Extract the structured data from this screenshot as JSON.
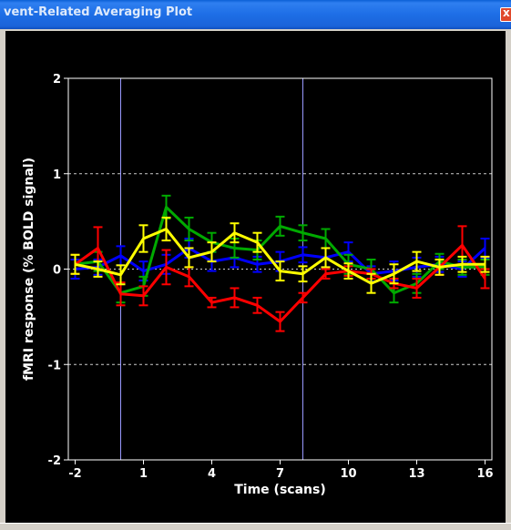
{
  "window": {
    "title": "vent-Related Averaging Plot",
    "close_glyph": "x"
  },
  "chart_data": {
    "type": "line",
    "xlabel": "Time (scans)",
    "ylabel": "fMRI response (% BOLD signal)",
    "xlim": [
      -2.3,
      16.3
    ],
    "ylim": [
      -2,
      2
    ],
    "xticks": [
      -2,
      1,
      4,
      7,
      10,
      13,
      16
    ],
    "yticks": [
      -2,
      -1,
      0,
      1,
      2
    ],
    "grid_y": [
      -1,
      1
    ],
    "event_markers": [
      0,
      8
    ],
    "colors": {
      "background": "#000000",
      "axes": "#ffffff",
      "text": "#ffffff",
      "marker_line": "#9999ff"
    },
    "x": [
      -2,
      -1,
      0,
      1,
      2,
      3,
      4,
      5,
      6,
      7,
      8,
      9,
      10,
      11,
      12,
      13,
      14,
      15,
      16
    ],
    "series": [
      {
        "color": "#0000ff",
        "values": [
          0.0,
          0.02,
          0.14,
          -0.02,
          0.05,
          0.22,
          0.08,
          0.12,
          0.05,
          0.08,
          0.15,
          0.12,
          0.18,
          -0.05,
          -0.02,
          0.02,
          0.05,
          0.0,
          0.22
        ],
        "err": [
          0.1,
          0.08,
          0.1,
          0.1,
          0.1,
          0.1,
          0.1,
          0.1,
          0.08,
          0.1,
          0.08,
          0.1,
          0.1,
          0.08,
          0.1,
          0.1,
          0.08,
          0.08,
          0.1
        ]
      },
      {
        "color": "#00aa00",
        "values": [
          0.05,
          0.08,
          -0.25,
          -0.18,
          0.65,
          0.42,
          0.28,
          0.22,
          0.2,
          0.45,
          0.38,
          0.32,
          0.05,
          0.0,
          -0.25,
          -0.15,
          0.08,
          0.02,
          0.02
        ],
        "err": [
          0.1,
          0.1,
          0.1,
          0.1,
          0.12,
          0.12,
          0.1,
          0.1,
          0.1,
          0.1,
          0.08,
          0.1,
          0.1,
          0.1,
          0.1,
          0.1,
          0.08,
          0.08,
          0.08
        ]
      },
      {
        "color": "#ff0000",
        "values": [
          0.05,
          0.22,
          -0.26,
          -0.28,
          0.02,
          -0.08,
          -0.35,
          -0.3,
          -0.38,
          -0.55,
          -0.3,
          -0.05,
          -0.02,
          -0.05,
          -0.15,
          -0.2,
          0.02,
          0.25,
          -0.1
        ],
        "err": [
          0.1,
          0.22,
          0.12,
          0.1,
          0.18,
          0.1,
          0.05,
          0.1,
          0.08,
          0.1,
          0.05,
          0.05,
          0.05,
          0.05,
          0.05,
          0.1,
          0.08,
          0.2,
          0.1
        ]
      },
      {
        "color": "#ffff00",
        "values": [
          0.05,
          0.0,
          -0.06,
          0.32,
          0.42,
          0.12,
          0.18,
          0.38,
          0.28,
          -0.02,
          -0.05,
          0.12,
          -0.02,
          -0.15,
          -0.05,
          0.08,
          0.02,
          0.05,
          0.05
        ],
        "err": [
          0.1,
          0.08,
          0.1,
          0.14,
          0.12,
          0.1,
          0.1,
          0.1,
          0.1,
          0.1,
          0.08,
          0.1,
          0.08,
          0.1,
          0.1,
          0.1,
          0.08,
          0.08,
          0.08
        ]
      }
    ]
  }
}
